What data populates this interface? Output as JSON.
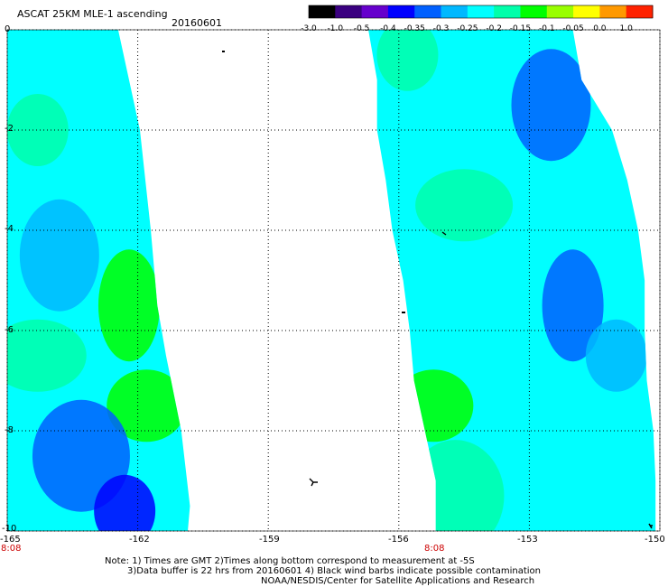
{
  "title": "ASCAT 25KM MLE-1 ascending",
  "date": "20160601",
  "colorbar": {
    "labels": [
      "-3.0",
      "-1.0",
      "-0.5",
      "-0.4",
      "-0.35",
      "-0.3",
      "-0.25",
      "-0.2",
      "-0.15",
      "-0.1",
      "-0.05",
      "0.0",
      "1.0"
    ],
    "colors": [
      "#000000",
      "#3a0080",
      "#6600cc",
      "#0000ff",
      "#0060ff",
      "#00b8ff",
      "#00ffff",
      "#00ffaa",
      "#00ff00",
      "#99ff00",
      "#ffff00",
      "#ff9900",
      "#ff2200"
    ]
  },
  "axes": {
    "lat_labels": [
      "0",
      "-2",
      "-4",
      "-6",
      "-8",
      "-10"
    ],
    "lon_labels": [
      "-165",
      "-162",
      "-159",
      "-156",
      "-153",
      "-150"
    ],
    "lon_range": [
      -165,
      -150
    ],
    "lat_range": [
      0,
      -10
    ],
    "grid": true
  },
  "times": [
    "8:08",
    "8:08"
  ],
  "notes": [
    "Note: 1) Times are GMT 2)Times along bottom correspond to measurement at -5S",
    "3)Data buffer is 22 hrs from 20160601 4) Black wind barbs indicate possible contamination",
    "NOAA/NESDIS/Center for Satellite Applications and Research"
  ],
  "swaths": [
    {
      "name": "west swath",
      "rows": [
        [
          0.0,
          -165.0,
          -162.45
        ],
        [
          -2.0,
          -165.0,
          -161.95
        ],
        [
          -4.0,
          -165.0,
          -161.7
        ],
        [
          -5.5,
          -165.0,
          -161.55
        ],
        [
          -6.5,
          -165.0,
          -161.35
        ],
        [
          -8.0,
          -165.0,
          -161.0
        ],
        [
          -9.5,
          -165.0,
          -160.8
        ],
        [
          -10.0,
          -165.0,
          -160.85
        ]
      ],
      "patches": [
        {
          "lat": -2.0,
          "lon": -164.3,
          "value": -0.2
        },
        {
          "lat": -4.5,
          "lon": -163.8,
          "value": -0.3
        },
        {
          "lat": -6.5,
          "lon": -164.3,
          "value": -0.2
        },
        {
          "lat": -5.5,
          "lon": -162.2,
          "value": -0.15
        },
        {
          "lat": -7.5,
          "lon": -161.8,
          "value": -0.15
        },
        {
          "lat": -8.5,
          "lon": -163.3,
          "value": -0.35
        },
        {
          "lat": -9.6,
          "lon": -162.3,
          "value": -0.4
        }
      ]
    },
    {
      "name": "east swath",
      "rows": [
        [
          0.0,
          -156.7,
          -152.0
        ],
        [
          -1.0,
          -156.5,
          -151.8
        ],
        [
          -2.0,
          -156.5,
          -151.1
        ],
        [
          -3.0,
          -156.3,
          -150.75
        ],
        [
          -4.0,
          -156.15,
          -150.5
        ],
        [
          -5.0,
          -155.9,
          -150.35
        ],
        [
          -6.0,
          -155.75,
          -150.35
        ],
        [
          -7.0,
          -155.65,
          -150.3
        ],
        [
          -8.0,
          -155.4,
          -150.15
        ],
        [
          -9.0,
          -155.15,
          -150.1
        ],
        [
          -10.0,
          -155.15,
          -150.1
        ]
      ],
      "patches": [
        {
          "lat": -0.5,
          "lon": -155.8,
          "value": -0.2
        },
        {
          "lat": -1.5,
          "lon": -152.5,
          "value": -0.35
        },
        {
          "lat": -3.5,
          "lon": -154.5,
          "value": -0.2
        },
        {
          "lat": -5.5,
          "lon": -152.0,
          "value": -0.35
        },
        {
          "lat": -7.5,
          "lon": -155.2,
          "value": -0.15
        },
        {
          "lat": -9.3,
          "lon": -154.7,
          "value": -0.2
        },
        {
          "lat": -6.5,
          "lon": -151.0,
          "value": -0.3
        }
      ]
    }
  ]
}
